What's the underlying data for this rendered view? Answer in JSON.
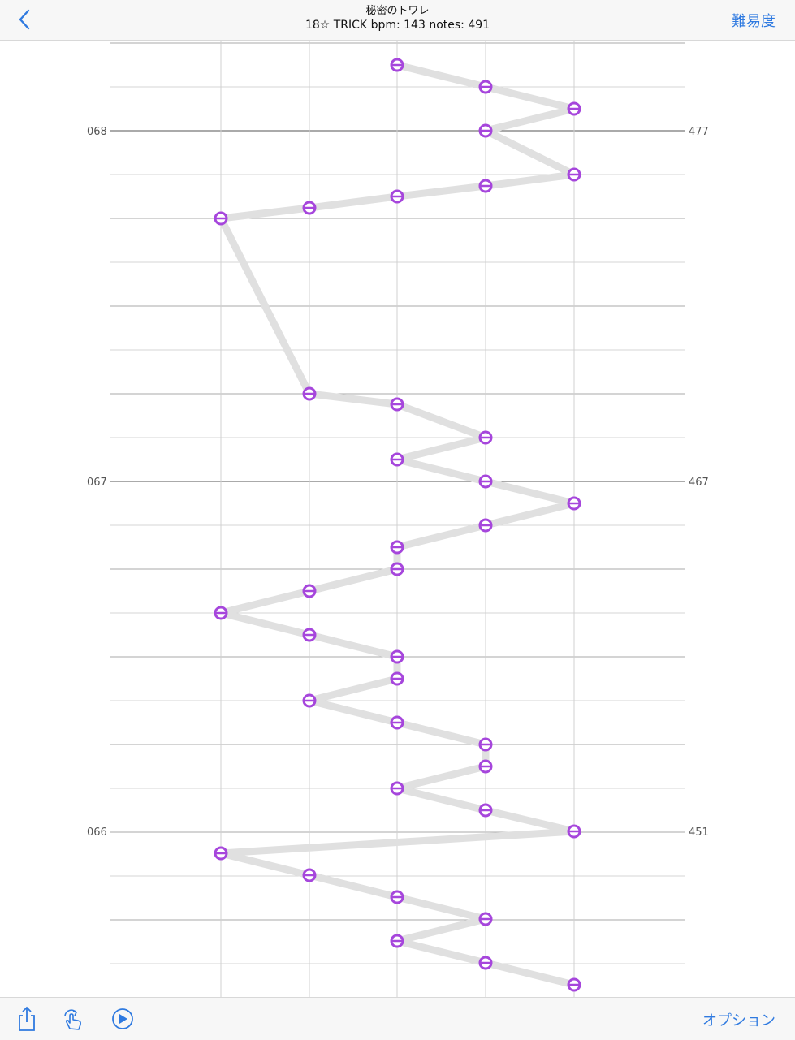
{
  "nav": {
    "title": "秘密のトワレ",
    "subtitle": "18☆ TRICK bpm: 143 notes: 491",
    "difficulty_label": "難易度"
  },
  "toolbar": {
    "option_label": "オプション"
  },
  "icons": [
    "back-chevron-icon",
    "share-icon",
    "gesture-hand-icon",
    "play-icon"
  ],
  "colors": {
    "accent": "#2f7ae0",
    "note": "#a646dc",
    "path": "#e0e0e0"
  },
  "chart": {
    "lanes": 5,
    "measure_labels": [
      {
        "measure": "068",
        "note_number": "477"
      },
      {
        "measure": "067",
        "note_number": "467"
      },
      {
        "measure": "066",
        "note_number": "451"
      }
    ],
    "notes_top_to_bottom": [
      {
        "lane": 3
      },
      {
        "lane": 4
      },
      {
        "lane": 5
      },
      {
        "lane": 4
      },
      {
        "lane": 5
      },
      {
        "lane": 4
      },
      {
        "lane": 3
      },
      {
        "lane": 2
      },
      {
        "lane": 1
      },
      {
        "lane": 2
      },
      {
        "lane": 3
      },
      {
        "lane": 4
      },
      {
        "lane": 3
      },
      {
        "lane": 4
      },
      {
        "lane": 5
      },
      {
        "lane": 4
      },
      {
        "lane": 3
      },
      {
        "lane": 3
      },
      {
        "lane": 2
      },
      {
        "lane": 1
      },
      {
        "lane": 2
      },
      {
        "lane": 3
      },
      {
        "lane": 3
      },
      {
        "lane": 2
      },
      {
        "lane": 3
      },
      {
        "lane": 4
      },
      {
        "lane": 4
      },
      {
        "lane": 3
      },
      {
        "lane": 4
      },
      {
        "lane": 5
      },
      {
        "lane": 1
      },
      {
        "lane": 2
      },
      {
        "lane": 3
      },
      {
        "lane": 4
      },
      {
        "lane": 3
      },
      {
        "lane": 4
      },
      {
        "lane": 5
      }
    ]
  }
}
